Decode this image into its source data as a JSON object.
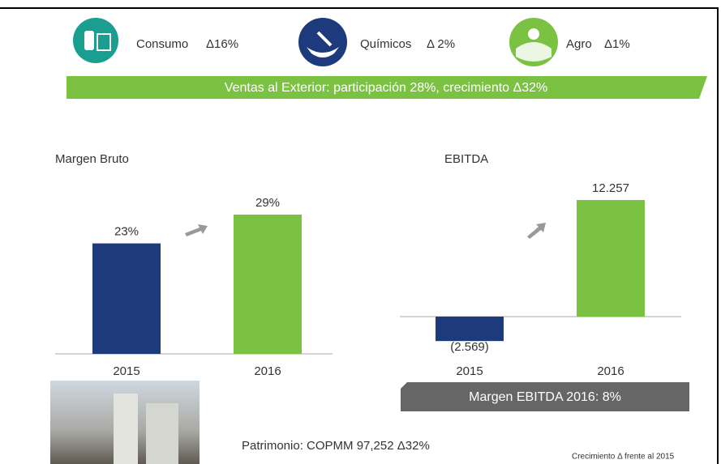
{
  "segments": [
    {
      "label": "Consumo",
      "change": "Δ16%"
    },
    {
      "label": "Químicos",
      "change": "Δ 2%"
    },
    {
      "label": "Agro",
      "change": "Δ1%"
    }
  ],
  "banner": "Ventas al Exterior: participación 28%, crecimiento Δ32%",
  "chart_data": [
    {
      "type": "bar",
      "title": "Margen Bruto",
      "categories": [
        "2015",
        "2016"
      ],
      "values": [
        23,
        29
      ],
      "value_labels": [
        "23%",
        "29%"
      ],
      "colors": [
        "#1d3a7c",
        "#7cc242"
      ]
    },
    {
      "type": "bar",
      "title": "EBITDA",
      "categories": [
        "2015",
        "2016"
      ],
      "values": [
        -2569,
        12257
      ],
      "value_labels": [
        "(2.569)",
        "12.257"
      ],
      "colors": [
        "#1d3a7c",
        "#7cc242"
      ]
    }
  ],
  "ebitda_margin": "Margen EBITDA 2016: 8%",
  "equity": "Patrimonio: COPMM 97,252   Δ32%",
  "footnote": "Crecimiento Δ frente al 2015"
}
